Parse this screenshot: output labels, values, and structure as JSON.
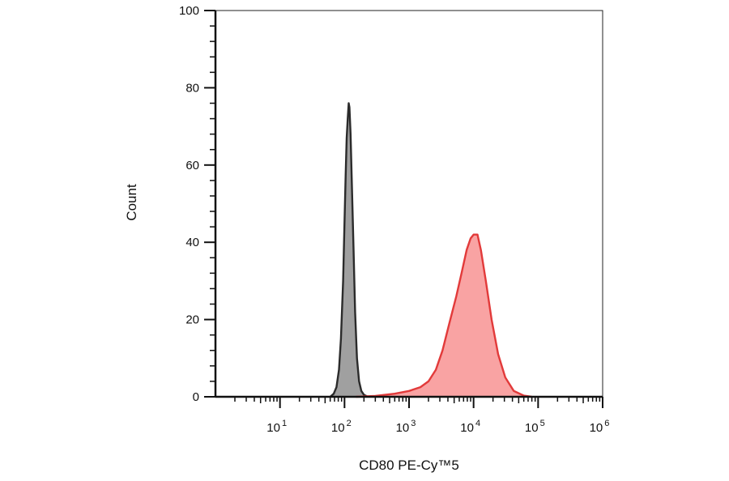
{
  "chart_data": {
    "type": "area",
    "title": "",
    "xlabel": "CD80 PE-Cy™5",
    "ylabel": "Count",
    "x_scale": "log10",
    "xlim": [
      1,
      1000000
    ],
    "ylim": [
      0,
      100
    ],
    "y_ticks": [
      0,
      20,
      40,
      60,
      80,
      100
    ],
    "x_ticks": [
      {
        "base": "10",
        "exp": "1",
        "value": 10
      },
      {
        "base": "10",
        "exp": "2",
        "value": 100
      },
      {
        "base": "10",
        "exp": "3",
        "value": 1000
      },
      {
        "base": "10",
        "exp": "4",
        "value": 10000
      },
      {
        "base": "10",
        "exp": "5",
        "value": 100000
      },
      {
        "base": "10",
        "exp": "6",
        "value": 1000000
      }
    ],
    "grid": false,
    "legend": "none",
    "series": [
      {
        "fill": "#a0a0a0",
        "stroke": "#2b2b2b",
        "points": [
          [
            60,
            0
          ],
          [
            68,
            0.8
          ],
          [
            75,
            2.5
          ],
          [
            82,
            7
          ],
          [
            88,
            15
          ],
          [
            95,
            30
          ],
          [
            100,
            45
          ],
          [
            104,
            57
          ],
          [
            108,
            67
          ],
          [
            112,
            72
          ],
          [
            116,
            76
          ],
          [
            119,
            75
          ],
          [
            124,
            68
          ],
          [
            130,
            55
          ],
          [
            138,
            38
          ],
          [
            146,
            22
          ],
          [
            156,
            10
          ],
          [
            168,
            4
          ],
          [
            182,
            1.5
          ],
          [
            200,
            0.5
          ],
          [
            230,
            0
          ]
        ]
      },
      {
        "fill": "#f9a3a3",
        "stroke": "#e23a3a",
        "points": [
          [
            150,
            0
          ],
          [
            300,
            0.2
          ],
          [
            600,
            0.8
          ],
          [
            1000,
            1.5
          ],
          [
            1500,
            2.5
          ],
          [
            2000,
            4
          ],
          [
            2600,
            7
          ],
          [
            3300,
            12
          ],
          [
            4200,
            19
          ],
          [
            5400,
            26
          ],
          [
            6500,
            32
          ],
          [
            7800,
            38
          ],
          [
            9000,
            41
          ],
          [
            10000,
            42
          ],
          [
            11500,
            42
          ],
          [
            13000,
            38
          ],
          [
            15500,
            30
          ],
          [
            19000,
            20
          ],
          [
            24000,
            11
          ],
          [
            31000,
            5
          ],
          [
            42000,
            1.5
          ],
          [
            60000,
            0.3
          ],
          [
            80000,
            0
          ]
        ]
      }
    ]
  }
}
